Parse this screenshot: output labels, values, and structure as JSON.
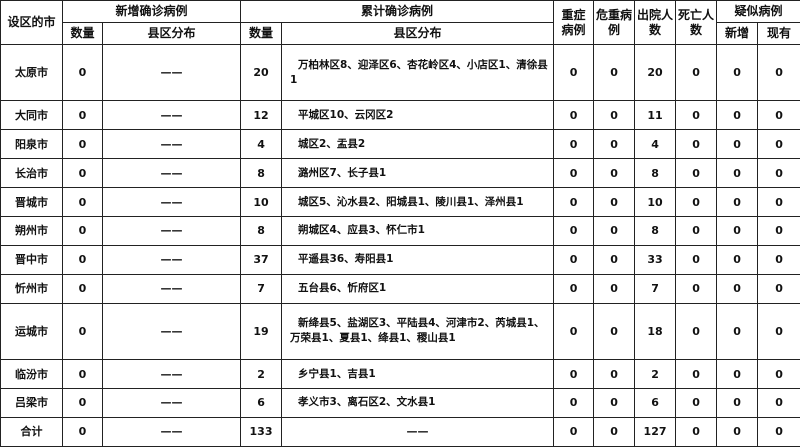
{
  "headers": {
    "city": "设区的市",
    "new_confirmed": "新增确诊病例",
    "total_confirmed": "累计确诊病例",
    "severe": "重症病例",
    "critical": "危重病例",
    "discharged": "出院人数",
    "deaths": "死亡人数",
    "suspected": "疑似病例",
    "count": "数量",
    "districts": "县区分布",
    "sus_new": "新增",
    "sus_current": "现有"
  },
  "rows": [
    {
      "city": "太原市",
      "new_count": "0",
      "new_dist": "——",
      "total": "20",
      "total_dist": "万柏林区8、迎泽区6、杏花岭区4、小店区1、清徐县1",
      "severe": "0",
      "critical": "0",
      "discharged": "20",
      "deaths": "0",
      "sus_new": "0",
      "sus_current": "0"
    },
    {
      "city": "大同市",
      "new_count": "0",
      "new_dist": "——",
      "total": "12",
      "total_dist": "平城区10、云冈区2",
      "severe": "0",
      "critical": "0",
      "discharged": "11",
      "deaths": "0",
      "sus_new": "0",
      "sus_current": "0"
    },
    {
      "city": "阳泉市",
      "new_count": "0",
      "new_dist": "——",
      "total": "4",
      "total_dist": "城区2、盂县2",
      "severe": "0",
      "critical": "0",
      "discharged": "4",
      "deaths": "0",
      "sus_new": "0",
      "sus_current": "0"
    },
    {
      "city": "长治市",
      "new_count": "0",
      "new_dist": "——",
      "total": "8",
      "total_dist": "潞州区7、长子县1",
      "severe": "0",
      "critical": "0",
      "discharged": "8",
      "deaths": "0",
      "sus_new": "0",
      "sus_current": "0"
    },
    {
      "city": "晋城市",
      "new_count": "0",
      "new_dist": "——",
      "total": "10",
      "total_dist": "城区5、沁水县2、阳城县1、陵川县1、泽州县1",
      "severe": "0",
      "critical": "0",
      "discharged": "10",
      "deaths": "0",
      "sus_new": "0",
      "sus_current": "0"
    },
    {
      "city": "朔州市",
      "new_count": "0",
      "new_dist": "——",
      "total": "8",
      "total_dist": "朔城区4、应县3、怀仁市1",
      "severe": "0",
      "critical": "0",
      "discharged": "8",
      "deaths": "0",
      "sus_new": "0",
      "sus_current": "0"
    },
    {
      "city": "晋中市",
      "new_count": "0",
      "new_dist": "——",
      "total": "37",
      "total_dist": "平遥县36、寿阳县1",
      "severe": "0",
      "critical": "0",
      "discharged": "33",
      "deaths": "0",
      "sus_new": "0",
      "sus_current": "0"
    },
    {
      "city": "忻州市",
      "new_count": "0",
      "new_dist": "——",
      "total": "7",
      "total_dist": "五台县6、忻府区1",
      "severe": "0",
      "critical": "0",
      "discharged": "7",
      "deaths": "0",
      "sus_new": "0",
      "sus_current": "0"
    },
    {
      "city": "运城市",
      "new_count": "0",
      "new_dist": "——",
      "total": "19",
      "total_dist": "新绛县5、盐湖区3、平陆县4、河津市2、芮城县1、万荣县1、夏县1、绛县1、稷山县1",
      "severe": "0",
      "critical": "0",
      "discharged": "18",
      "deaths": "0",
      "sus_new": "0",
      "sus_current": "0"
    },
    {
      "city": "临汾市",
      "new_count": "0",
      "new_dist": "——",
      "total": "2",
      "total_dist": "乡宁县1、吉县1",
      "severe": "0",
      "critical": "0",
      "discharged": "2",
      "deaths": "0",
      "sus_new": "0",
      "sus_current": "0"
    },
    {
      "city": "吕梁市",
      "new_count": "0",
      "new_dist": "——",
      "total": "6",
      "total_dist": "孝义市3、离石区2、文水县1",
      "severe": "0",
      "critical": "0",
      "discharged": "6",
      "deaths": "0",
      "sus_new": "0",
      "sus_current": "0"
    },
    {
      "city": "合计",
      "new_count": "0",
      "new_dist": "——",
      "total": "133",
      "total_dist": "——",
      "severe": "0",
      "critical": "0",
      "discharged": "127",
      "deaths": "0",
      "sus_new": "0",
      "sus_current": "0"
    }
  ]
}
